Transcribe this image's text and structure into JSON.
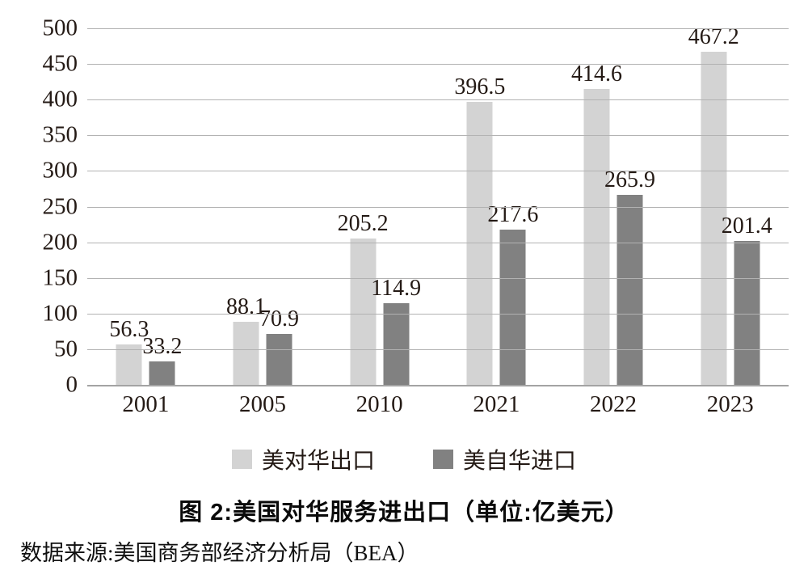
{
  "chart_data": {
    "type": "bar",
    "title": "图 2:美国对华服务进出口（单位:亿美元）",
    "source": "数据来源:美国商务部经济分析局（BEA）",
    "categories": [
      "2001",
      "2005",
      "2010",
      "2021",
      "2022",
      "2023"
    ],
    "series": [
      {
        "name": "美对华出口",
        "color": "#d3d3d3",
        "values": [
          56.3,
          88.1,
          205.2,
          396.5,
          414.6,
          467.2
        ]
      },
      {
        "name": "美自华进口",
        "color": "#818181",
        "values": [
          33.2,
          70.9,
          114.9,
          217.6,
          265.9,
          201.4
        ]
      }
    ],
    "ylim": [
      0,
      500
    ],
    "ytick_step": 50,
    "grid": "horizontal",
    "gridline_color": "#b2b2b2",
    "legend_position": "bottom",
    "value_labels": "outside-end"
  }
}
